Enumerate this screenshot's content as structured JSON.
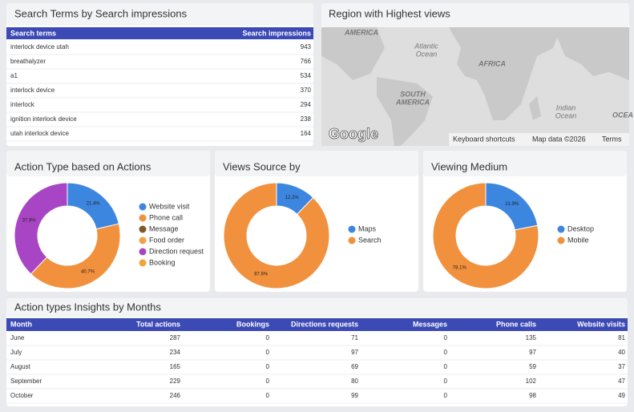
{
  "search_terms": {
    "title": "Search Terms by Search impressions",
    "columns": [
      "Search terms",
      "Search impressions"
    ],
    "rows": [
      [
        "interlock device utah",
        943
      ],
      [
        "breathalyzer",
        766
      ],
      [
        "a1",
        534
      ],
      [
        "interlock device",
        370
      ],
      [
        "interlock",
        294
      ],
      [
        "ignition interlock device",
        238
      ],
      [
        "utah interlock device",
        164
      ]
    ]
  },
  "map": {
    "title": "Region with Highest views",
    "labels": [
      "AMERICA",
      "Atlantic",
      "Ocean",
      "AFRICA",
      "SOUTH",
      "AMERICA",
      "Indian",
      "Ocean",
      "OCEA"
    ],
    "logo": "Google",
    "footer": [
      "Keyboard shortcuts",
      "Map data ©2026",
      "Terms"
    ]
  },
  "chart_data": [
    {
      "type": "donut",
      "title": "Action Type based on Actions",
      "categories": [
        "Website visit",
        "Phone call",
        "Message",
        "Food order",
        "Direction request",
        "Booking"
      ],
      "values": [
        21.4,
        40.7,
        0,
        0,
        37.9,
        0
      ],
      "value_labels": [
        "21.4%",
        "40.7%",
        null,
        null,
        "37.9%",
        null
      ],
      "colors": [
        "#3d86e0",
        "#f2913d",
        "#7c5a2b",
        "#eea24a",
        "#a845c4",
        "#f0a636"
      ]
    },
    {
      "type": "donut",
      "title": "Views Source by",
      "categories": [
        "Maps",
        "Search"
      ],
      "values": [
        12.2,
        87.8
      ],
      "value_labels": [
        "12.2%",
        "87.8%"
      ],
      "colors": [
        "#3d86e0",
        "#f2913d"
      ]
    },
    {
      "type": "donut",
      "title": "Viewing Medium",
      "categories": [
        "Desktop",
        "Mobile"
      ],
      "values": [
        21.9,
        78.1
      ],
      "value_labels": [
        "21.9%",
        "78.1%"
      ],
      "colors": [
        "#3d86e0",
        "#f2913d"
      ]
    }
  ],
  "monthly": {
    "title": "Action types Insights by Months",
    "columns": [
      "Month",
      "Total actions",
      "Bookings",
      "Directions requests",
      "Messages",
      "Phone calls",
      "Website visits"
    ],
    "rows": [
      [
        "June",
        287,
        0,
        71,
        0,
        135,
        81
      ],
      [
        "July",
        234,
        0,
        97,
        0,
        97,
        40
      ],
      [
        "August",
        165,
        0,
        69,
        0,
        59,
        37
      ],
      [
        "September",
        229,
        0,
        80,
        0,
        102,
        47
      ],
      [
        "October",
        246,
        0,
        99,
        0,
        98,
        49
      ]
    ]
  }
}
